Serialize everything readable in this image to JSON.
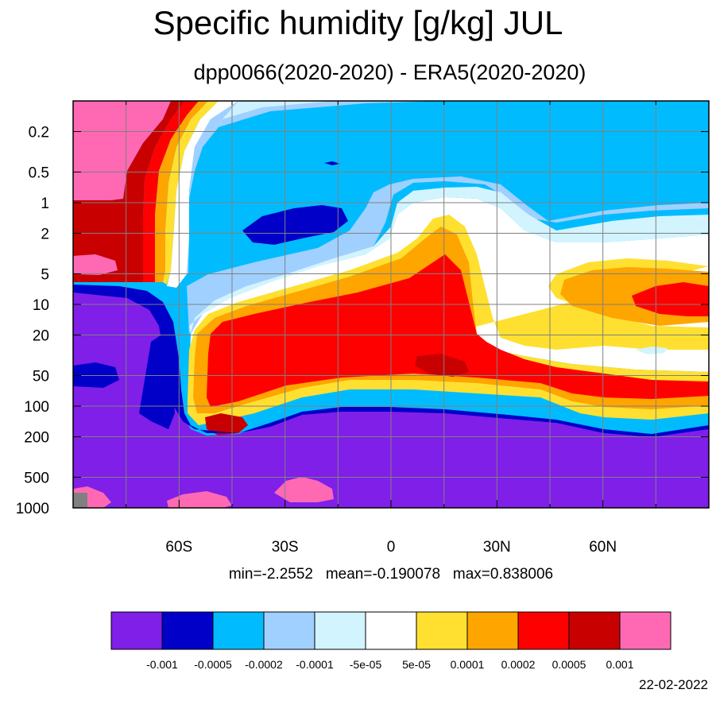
{
  "chart_data": {
    "type": "heatmap",
    "plot_type": "filled contour (latitude-pressure cross section)",
    "title": "Specific humidity [g/kg] JUL",
    "subtitle": "dpp0066(2020-2020) - ERA5(2020-2020)",
    "x_ticks": [
      "60S",
      "30S",
      "0",
      "30N",
      "60N"
    ],
    "x_tick_values": [
      -60,
      -30,
      0,
      30,
      60
    ],
    "xlim": [
      -90,
      90
    ],
    "y_ticks": [
      "0.2",
      "0.5",
      "1",
      "2",
      "5",
      "10",
      "20",
      "50",
      "100",
      "200",
      "500",
      "1000"
    ],
    "y_tick_values": [
      0.2,
      0.5,
      1,
      2,
      5,
      10,
      20,
      50,
      100,
      200,
      500,
      1000
    ],
    "y_scale": "log",
    "y_inverted": true,
    "grid": true,
    "colorbar": {
      "labels": [
        "-0.001",
        "-0.0005",
        "-0.0002",
        "-0.0001",
        "-5e-05",
        "5e-05",
        "0.0001",
        "0.0002",
        "0.0005",
        "0.001"
      ],
      "colors": [
        "#7f1fe8",
        "#0000c8",
        "#00bcff",
        "#a0d0ff",
        "#d2f4ff",
        "#ffffff",
        "#ffe030",
        "#ffa500",
        "#ff0000",
        "#c80000",
        "#ff69b4"
      ]
    },
    "stats": {
      "min": "min=-2.2552",
      "mean": "mean=-0.190078",
      "max": "max=0.838006"
    },
    "date": "22-02-2022"
  }
}
